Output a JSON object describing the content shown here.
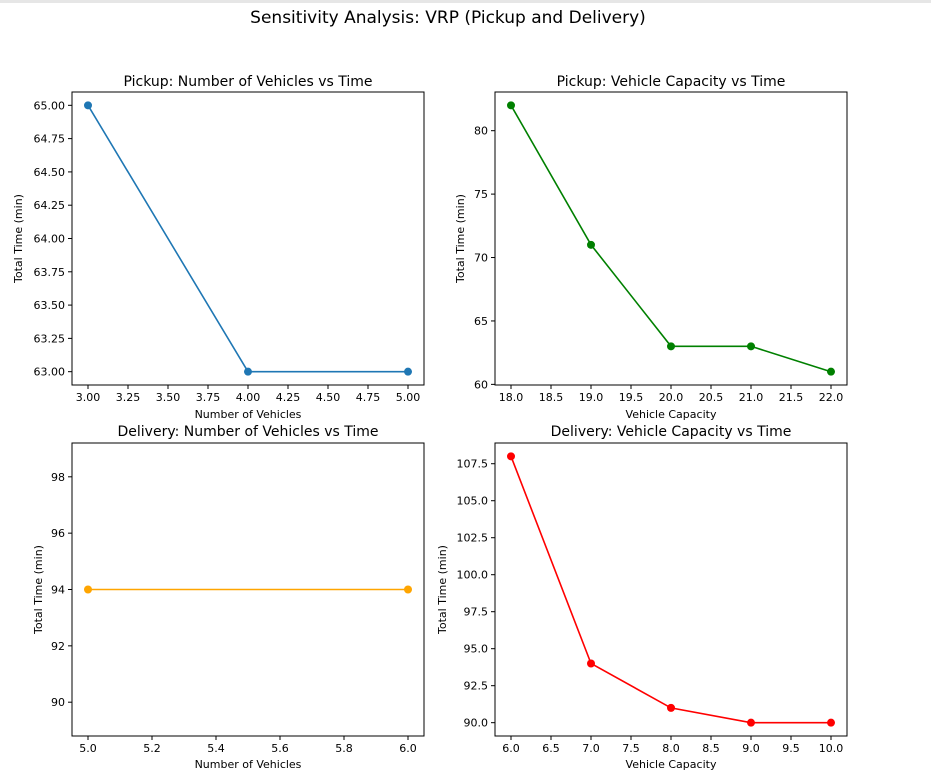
{
  "figure": {
    "suptitle": "Sensitivity Analysis: VRP (Pickup and Delivery)"
  },
  "chart_data": [
    {
      "type": "line",
      "title": "Pickup: Number of Vehicles vs Time",
      "xlabel": "Number of Vehicles",
      "ylabel": "Total Time (min)",
      "x": [
        3,
        4,
        5
      ],
      "series": [
        {
          "values": [
            65,
            63,
            63
          ],
          "color": "#1f77b4"
        }
      ],
      "xlim": [
        2.9,
        5.1
      ],
      "ylim": [
        62.9,
        65.1
      ],
      "xticks": [
        3.0,
        3.25,
        3.5,
        3.75,
        4.0,
        4.25,
        4.5,
        4.75,
        5.0
      ],
      "xtick_labels": [
        "3.00",
        "3.25",
        "3.50",
        "3.75",
        "4.00",
        "4.25",
        "4.50",
        "4.75",
        "5.00"
      ],
      "yticks": [
        63.0,
        63.25,
        63.5,
        63.75,
        64.0,
        64.25,
        64.5,
        64.75,
        65.0
      ],
      "ytick_labels": [
        "63.00",
        "63.25",
        "63.50",
        "63.75",
        "64.00",
        "64.25",
        "64.50",
        "64.75",
        "65.00"
      ],
      "grid": false,
      "marker": "circle"
    },
    {
      "type": "line",
      "title": "Pickup: Vehicle Capacity vs Time",
      "xlabel": "Vehicle Capacity",
      "ylabel": "Total Time (min)",
      "x": [
        18,
        19,
        20,
        21,
        22
      ],
      "series": [
        {
          "values": [
            82,
            71,
            63,
            63,
            61
          ],
          "color": "#008000"
        }
      ],
      "xlim": [
        17.8,
        22.2
      ],
      "ylim": [
        59.95,
        83.05
      ],
      "xticks": [
        18.0,
        18.5,
        19.0,
        19.5,
        20.0,
        20.5,
        21.0,
        21.5,
        22.0
      ],
      "xtick_labels": [
        "18.0",
        "18.5",
        "19.0",
        "19.5",
        "20.0",
        "20.5",
        "21.0",
        "21.5",
        "22.0"
      ],
      "yticks": [
        60,
        65,
        70,
        75,
        80
      ],
      "ytick_labels": [
        "60",
        "65",
        "70",
        "75",
        "80"
      ],
      "grid": false,
      "marker": "circle"
    },
    {
      "type": "line",
      "title": "Delivery: Number of Vehicles vs Time",
      "xlabel": "Number of Vehicles",
      "ylabel": "Total Time (min)",
      "x": [
        5,
        6
      ],
      "series": [
        {
          "values": [
            94,
            94
          ],
          "color": "#ffa500"
        }
      ],
      "xlim": [
        4.95,
        6.05
      ],
      "ylim": [
        88.8,
        99.2
      ],
      "xticks": [
        5.0,
        5.2,
        5.4,
        5.6,
        5.8,
        6.0
      ],
      "xtick_labels": [
        "5.0",
        "5.2",
        "5.4",
        "5.6",
        "5.8",
        "6.0"
      ],
      "yticks": [
        90,
        92,
        94,
        96,
        98
      ],
      "ytick_labels": [
        "90",
        "92",
        "94",
        "96",
        "98"
      ],
      "grid": false,
      "marker": "circle"
    },
    {
      "type": "line",
      "title": "Delivery: Vehicle Capacity vs Time",
      "xlabel": "Vehicle Capacity",
      "ylabel": "Total Time (min)",
      "x": [
        6,
        7,
        8,
        9,
        10
      ],
      "series": [
        {
          "values": [
            108,
            94,
            91,
            90,
            90
          ],
          "color": "#ff0000"
        }
      ],
      "xlim": [
        5.8,
        10.2
      ],
      "ylim": [
        89.1,
        108.9
      ],
      "xticks": [
        6.0,
        6.5,
        7.0,
        7.5,
        8.0,
        8.5,
        9.0,
        9.5,
        10.0
      ],
      "xtick_labels": [
        "6.0",
        "6.5",
        "7.0",
        "7.5",
        "8.0",
        "8.5",
        "9.0",
        "9.5",
        "10.0"
      ],
      "yticks": [
        90.0,
        92.5,
        95.0,
        97.5,
        100.0,
        102.5,
        105.0,
        107.5
      ],
      "ytick_labels": [
        "90.0",
        "92.5",
        "95.0",
        "97.5",
        "100.0",
        "102.5",
        "105.0",
        "107.5"
      ],
      "grid": false,
      "marker": "circle"
    }
  ]
}
